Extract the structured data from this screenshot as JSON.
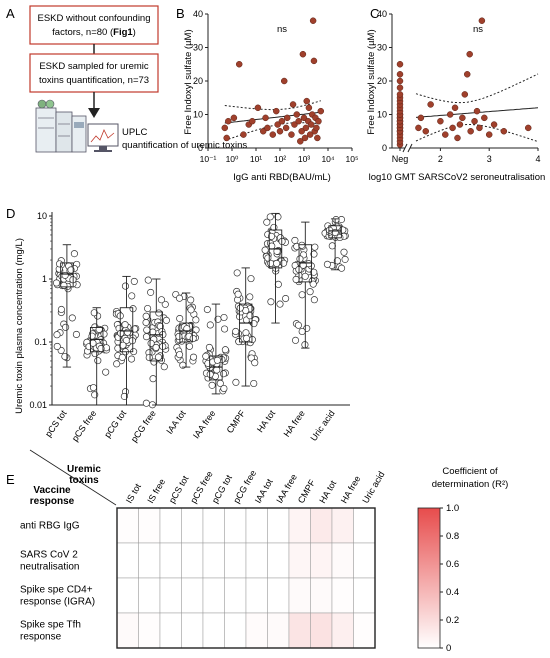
{
  "panel_a": {
    "letter": "A",
    "box1_line1": "ESKD without confounding",
    "box1_line2": "factors, n=80 (",
    "box1_bold": "Fig1",
    "box1_close": ")",
    "box2_line1": "ESKD sampled for uremic",
    "box2_line2": "toxins quantification, n=73",
    "uplc_line1": "UPLC",
    "uplc_line2": "quantification of uremic toxins",
    "colors": {
      "box_border": "#c0392b"
    },
    "icons": [
      "uplc-instrument-icon",
      "computer-monitor-icon"
    ]
  },
  "chart_data": [
    {
      "panel": "B",
      "type": "scatter",
      "ylabel": "Free Indoxyl sulfate (µM)",
      "xlabel": "IgG anti RBD(BAU/mL)",
      "annotation": "ns",
      "xscale": "log",
      "xlim": [
        0.1,
        100000
      ],
      "ylim": [
        0,
        40
      ],
      "xticks": [
        "10⁻¹",
        "10⁰",
        "10¹",
        "10²",
        "10³",
        "10⁴",
        "10⁵"
      ],
      "yticks": [
        "0",
        "10",
        "20",
        "30",
        "40"
      ],
      "regression": "line-with-95ci",
      "point_color": "#a0402c",
      "points": [
        [
          0.5,
          6
        ],
        [
          0.6,
          3
        ],
        [
          0.7,
          8
        ],
        [
          1.2,
          9
        ],
        [
          2,
          25
        ],
        [
          3,
          4
        ],
        [
          5,
          7
        ],
        [
          7,
          8
        ],
        [
          12,
          12
        ],
        [
          20,
          5
        ],
        [
          25,
          9
        ],
        [
          30,
          6
        ],
        [
          50,
          4
        ],
        [
          70,
          11
        ],
        [
          80,
          7
        ],
        [
          100,
          5
        ],
        [
          120,
          8
        ],
        [
          150,
          20
        ],
        [
          180,
          6
        ],
        [
          200,
          9
        ],
        [
          300,
          4
        ],
        [
          350,
          13
        ],
        [
          400,
          7
        ],
        [
          500,
          10
        ],
        [
          600,
          8
        ],
        [
          700,
          2
        ],
        [
          800,
          5
        ],
        [
          900,
          28
        ],
        [
          1000,
          9
        ],
        [
          1100,
          3
        ],
        [
          1200,
          6
        ],
        [
          1300,
          14
        ],
        [
          1500,
          8
        ],
        [
          1600,
          12
        ],
        [
          1800,
          4
        ],
        [
          2000,
          7
        ],
        [
          2200,
          10
        ],
        [
          2400,
          38
        ],
        [
          2600,
          26
        ],
        [
          2800,
          5
        ],
        [
          3000,
          9
        ],
        [
          3300,
          6
        ],
        [
          3600,
          3
        ],
        [
          4000,
          8
        ],
        [
          5000,
          11
        ]
      ]
    },
    {
      "panel": "C",
      "type": "scatter",
      "ylabel": "Free Indoxyl sulfate (µM)",
      "xlabel": "log10 GMT SARSCoV2 seroneutralisation",
      "annotation": "ns",
      "xlim": [
        1,
        4
      ],
      "ylim": [
        0,
        40
      ],
      "xticks": [
        "Neg",
        "2",
        "3",
        "4"
      ],
      "yticks": [
        "0",
        "10",
        "20",
        "30",
        "40"
      ],
      "regression": "line-with-95ci",
      "point_color": "#a0402c",
      "neg_points": [
        1,
        2,
        3,
        4,
        5,
        5,
        6,
        6,
        7,
        7,
        8,
        8,
        9,
        9,
        10,
        10,
        11,
        12,
        13,
        14,
        15,
        16,
        18,
        20,
        22,
        25
      ],
      "points": [
        [
          1.55,
          6
        ],
        [
          1.6,
          9
        ],
        [
          1.7,
          5
        ],
        [
          1.8,
          13
        ],
        [
          2.0,
          8
        ],
        [
          2.1,
          4
        ],
        [
          2.2,
          10
        ],
        [
          2.25,
          6
        ],
        [
          2.3,
          12
        ],
        [
          2.35,
          3
        ],
        [
          2.4,
          7
        ],
        [
          2.45,
          9
        ],
        [
          2.5,
          16
        ],
        [
          2.55,
          22
        ],
        [
          2.6,
          28
        ],
        [
          2.62,
          5
        ],
        [
          2.7,
          8
        ],
        [
          2.75,
          11
        ],
        [
          2.8,
          6
        ],
        [
          2.85,
          38
        ],
        [
          2.9,
          9
        ],
        [
          3.0,
          4
        ],
        [
          3.1,
          7
        ],
        [
          3.3,
          5
        ],
        [
          3.8,
          6
        ]
      ]
    },
    {
      "panel": "D",
      "type": "box-scatter",
      "ylabel": "Uremic toxin plasma concentration (mg/L)",
      "yscale": "log",
      "ylim": [
        0.01,
        10
      ],
      "yticks": [
        "10",
        "1",
        "0.1",
        "0.01"
      ],
      "categories": [
        "pCS tot",
        "pCS free",
        "pCG tot",
        "pCG free",
        "IAA tot",
        "IAA free",
        "CMPF",
        "HA tot",
        "HA free",
        "Uric acid"
      ],
      "boxes": [
        {
          "min": 0.04,
          "q1": 0.75,
          "median": 1.2,
          "q3": 1.8,
          "max": 3.5
        },
        {
          "min": 0.01,
          "q1": 0.07,
          "median": 0.11,
          "q3": 0.17,
          "max": 0.35
        },
        {
          "min": 0.01,
          "q1": 0.07,
          "median": 0.15,
          "q3": 0.35,
          "max": 1.1
        },
        {
          "min": 0.01,
          "q1": 0.05,
          "median": 0.13,
          "q3": 0.3,
          "max": 1.0
        },
        {
          "min": 0.04,
          "q1": 0.1,
          "median": 0.15,
          "q3": 0.2,
          "max": 0.6
        },
        {
          "min": 0.015,
          "q1": 0.025,
          "median": 0.04,
          "q3": 0.06,
          "max": 0.4
        },
        {
          "min": 0.02,
          "q1": 0.1,
          "median": 0.2,
          "q3": 0.4,
          "max": 1.5
        },
        {
          "min": 0.2,
          "q1": 1.5,
          "median": 3,
          "q3": 6,
          "max": 11
        },
        {
          "min": 0.08,
          "q1": 0.9,
          "median": 1.8,
          "q3": 3.5,
          "max": 8
        },
        {
          "min": 1.4,
          "q1": 4.5,
          "median": 5.8,
          "q3": 7,
          "max": 9
        }
      ]
    },
    {
      "panel": "E",
      "type": "heatmap",
      "column_header": "Uremic toxins",
      "row_header": "Vaccine response",
      "columns": [
        "IS tot",
        "IS free",
        "pCS tot",
        "pCS free",
        "pCG tot",
        "pCG free",
        "IAA tot",
        "IAA free",
        "CMPF",
        "HA tot",
        "HA free",
        "Uric acid"
      ],
      "rows": [
        "anti RBG IgG",
        "SARS CoV 2 neutralisation",
        "Spike spe CD4+ response (IGRA)",
        "Spike spe Tfh response"
      ],
      "values": [
        [
          0.01,
          0.01,
          0.0,
          0.0,
          0.0,
          0.0,
          0.0,
          0.0,
          0.06,
          0.12,
          0.08,
          0.0
        ],
        [
          0.0,
          0.0,
          0.0,
          0.0,
          0.0,
          0.0,
          0.0,
          0.0,
          0.05,
          0.06,
          0.03,
          0.0
        ],
        [
          0.0,
          0.0,
          0.0,
          0.0,
          0.0,
          0.0,
          0.0,
          0.0,
          0.03,
          0.03,
          0.01,
          0.0
        ],
        [
          0.03,
          0.01,
          0.0,
          0.0,
          0.0,
          0.0,
          0.02,
          0.03,
          0.15,
          0.16,
          0.09,
          0.01
        ]
      ],
      "colorbar": {
        "title_line1": "Coefficient of",
        "title_line2": "determination (R²)",
        "min": 0,
        "max": 1.0,
        "ticks": [
          "0",
          "0.2",
          "0.4",
          "0.6",
          "0.8",
          "1.0"
        ],
        "color_low": "#ffffff",
        "color_high": "#e74c4c"
      }
    }
  ],
  "panel_letters": {
    "b": "B",
    "c": "C",
    "d": "D",
    "e": "E"
  }
}
